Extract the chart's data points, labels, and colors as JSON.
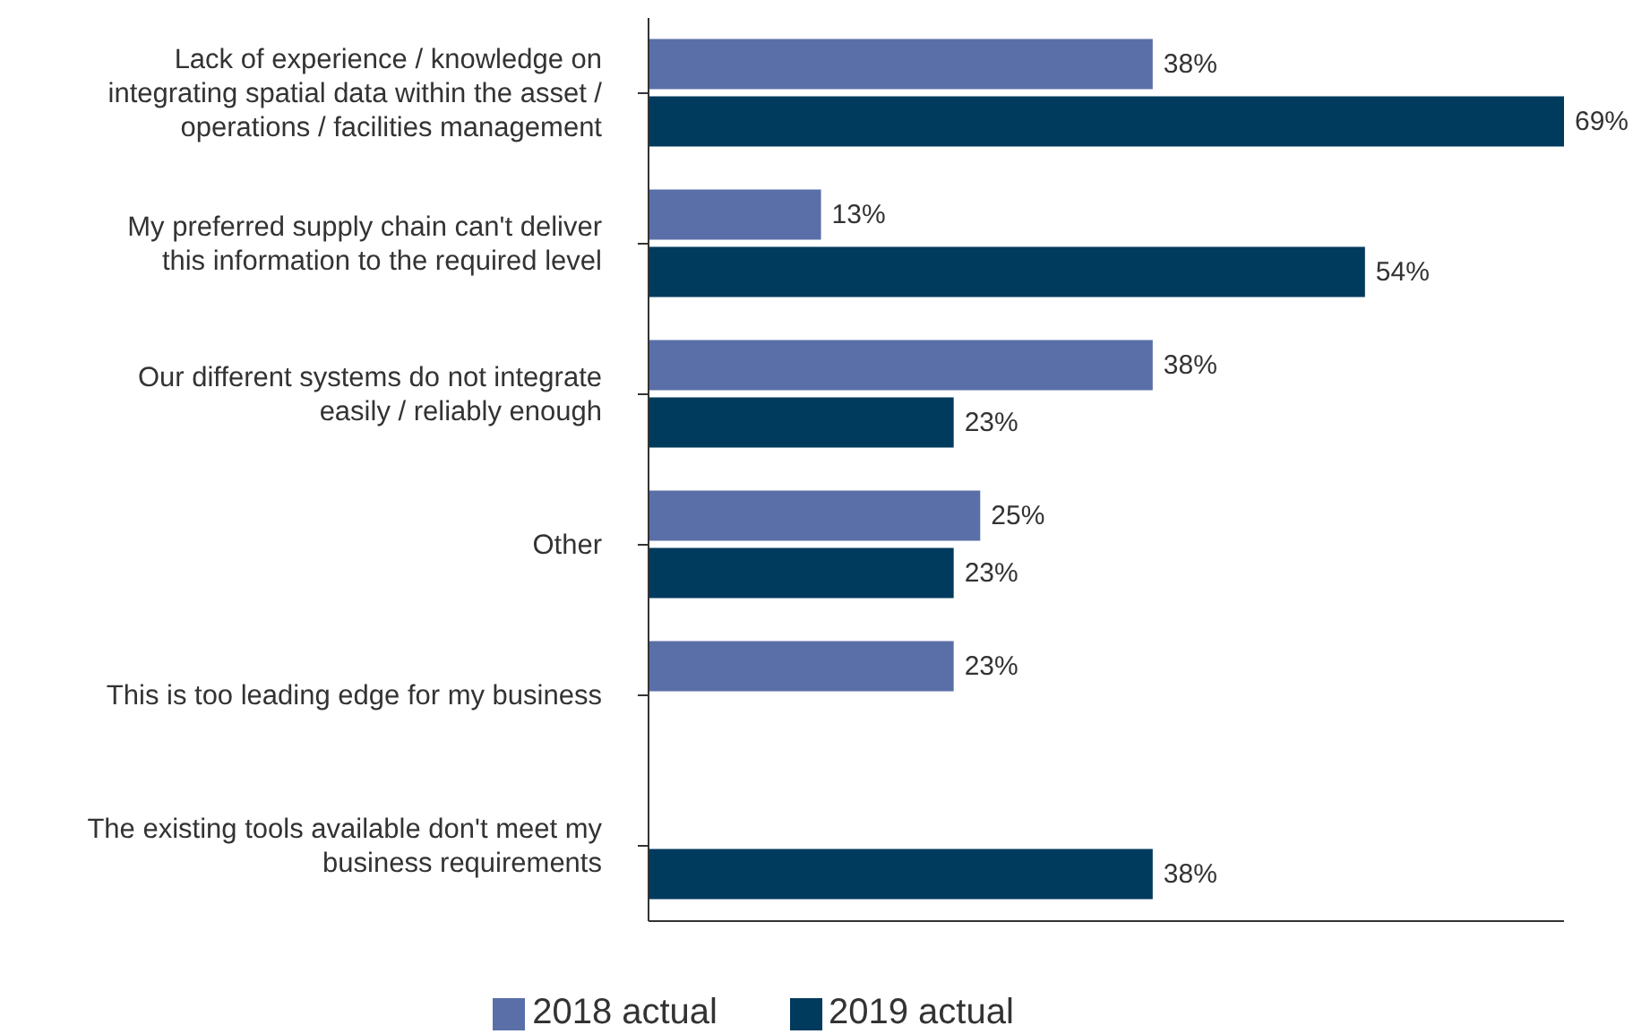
{
  "chart_data": {
    "type": "bar",
    "orientation": "horizontal",
    "categories": [
      "Lack of experience / knowledge on integrating spatial data within the asset / operations / facilities management",
      "My preferred supply chain can't deliver this information to the required level",
      "Our different systems do not integrate easily / reliably enough",
      "Other",
      "This is too leading edge for my business",
      "The existing tools available don't meet my business requirements"
    ],
    "series": [
      {
        "name": "2018 actual",
        "color": "#5a6fa8",
        "values": [
          38,
          13,
          38,
          25,
          23,
          null
        ],
        "value_labels": [
          "38%",
          "13%",
          "38%",
          "25%",
          "23%",
          null
        ]
      },
      {
        "name": "2019 actual",
        "color": "#003a5d",
        "values": [
          69,
          54,
          23,
          23,
          null,
          38
        ],
        "value_labels": [
          "69%",
          "54%",
          "23%",
          "23%",
          null,
          "38%"
        ]
      }
    ],
    "legend": "bottom",
    "tick_labels": "y",
    "grid": false
  }
}
